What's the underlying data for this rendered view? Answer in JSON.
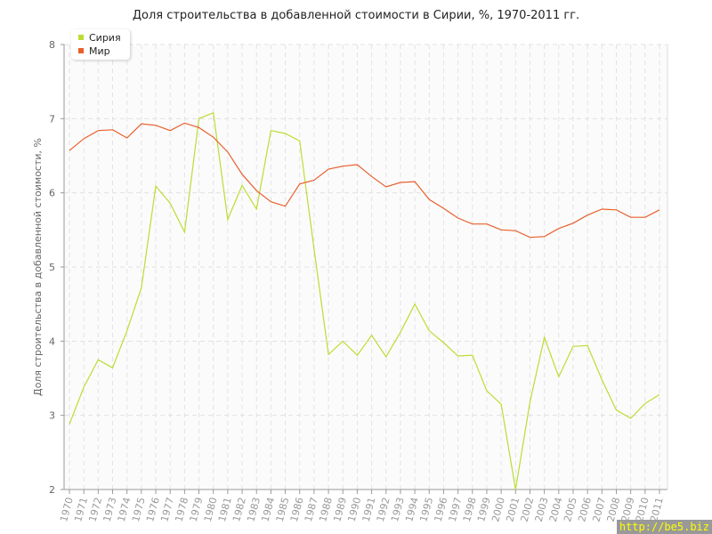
{
  "chart_data": {
    "type": "line",
    "title": "Доля строительства в добавленной стоимости в Сирии, %, 1970-2011 гг.",
    "xlabel": "",
    "ylabel": "Доля строительства в добавленной стоимости, %",
    "ylim": [
      2,
      8
    ],
    "yticks": [
      "2",
      "3",
      "4",
      "5",
      "6",
      "7",
      "8"
    ],
    "grid": true,
    "legend_position": "top-left",
    "x": [
      1970,
      1971,
      1972,
      1973,
      1974,
      1975,
      1976,
      1977,
      1978,
      1979,
      1980,
      1981,
      1982,
      1983,
      1984,
      1985,
      1986,
      1987,
      1988,
      1989,
      1990,
      1991,
      1992,
      1993,
      1994,
      1995,
      1996,
      1997,
      1998,
      1999,
      2000,
      2001,
      2002,
      2003,
      2004,
      2005,
      2006,
      2007,
      2008,
      2009,
      2010,
      2011
    ],
    "series": [
      {
        "name": "Сирия",
        "color": "#bbdd33",
        "values": [
          2.88,
          3.38,
          3.75,
          3.64,
          4.14,
          4.72,
          6.09,
          5.86,
          5.47,
          7.0,
          7.08,
          5.64,
          6.1,
          5.78,
          6.84,
          6.8,
          6.7,
          5.24,
          3.82,
          4.0,
          3.81,
          4.08,
          3.79,
          4.12,
          4.5,
          4.14,
          3.98,
          3.8,
          3.81,
          3.33,
          3.15,
          2.0,
          3.18,
          4.05,
          3.52,
          3.93,
          3.94,
          3.48,
          3.07,
          2.96,
          3.16,
          3.28
        ]
      },
      {
        "name": "Мир",
        "color": "#e8602c",
        "values": [
          6.57,
          6.73,
          6.84,
          6.85,
          6.74,
          6.93,
          6.91,
          6.84,
          6.94,
          6.88,
          6.75,
          6.55,
          6.25,
          6.03,
          5.88,
          5.82,
          6.12,
          6.17,
          6.32,
          6.36,
          6.38,
          6.22,
          6.08,
          6.14,
          6.15,
          5.91,
          5.79,
          5.66,
          5.58,
          5.58,
          5.5,
          5.49,
          5.4,
          5.41,
          5.52,
          5.59,
          5.7,
          5.78,
          5.77,
          5.67,
          5.67,
          5.77
        ]
      }
    ]
  },
  "watermark": "http://be5.biz"
}
